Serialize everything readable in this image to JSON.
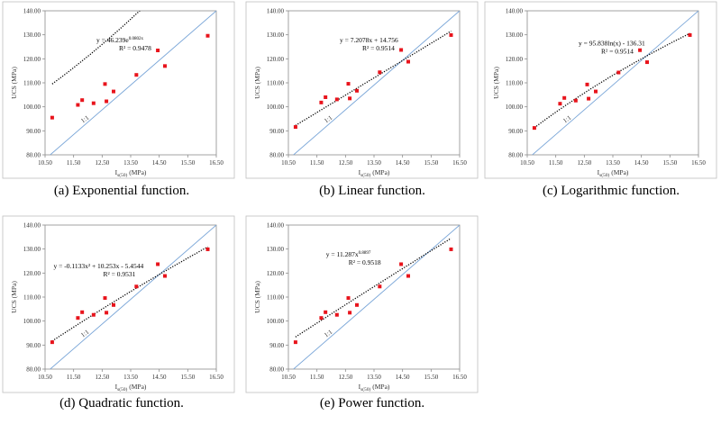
{
  "colors": {
    "points": "#e8141c",
    "trend": "#000000",
    "line_1_1": "#7aa6d8",
    "frame": "#bfbfbf"
  },
  "panels": [
    {
      "caption": "(a) Exponential function.",
      "equation": "y = 46.239e^{0.0802x}",
      "equation_display": "y = 46.239e",
      "equation_exp": "0.0802x",
      "r2": "R² = 0.9478",
      "ylabel": "UCS (MPa)",
      "xlabel_main": "I",
      "xlabel_sub": "s(50)",
      "xlabel_unit": " (MPa)",
      "line_label": "1:1"
    },
    {
      "caption": "(b) Linear function.",
      "equation": "y = 7.2078x + 14.756",
      "equation_display": "y = 7.2078x + 14.756",
      "equation_exp": "",
      "r2": "R² = 0.9514",
      "ylabel": "UCS (MPa)",
      "xlabel_main": "I",
      "xlabel_sub": "s(50)",
      "xlabel_unit": " (MPa)",
      "line_label": "1:1"
    },
    {
      "caption": "(c) Logarithmic function.",
      "equation": "y = 95.838ln(x) - 136.31",
      "equation_display": "y = 95.838ln(x) - 136.31",
      "equation_exp": "",
      "r2": "R² = 0.9514",
      "ylabel": "UCS (MPa)",
      "xlabel_main": "I",
      "xlabel_sub": "s(50)",
      "xlabel_unit": " (MPa)",
      "line_label": "1:1"
    },
    {
      "caption": "(d) Quadratic function.",
      "equation": "y = -0.1133x² + 10.253x - 5.4544",
      "equation_display": "y = -0.1133x² + 10.253x - 5.4544",
      "equation_exp": "",
      "r2": "R² = 0.9531",
      "ylabel": "UCS (MPa)",
      "xlabel_main": "I",
      "xlabel_sub": "s(50)",
      "xlabel_unit": " (MPa)",
      "line_label": "1:1"
    },
    {
      "caption": "(e) Power function.",
      "equation": "y = 11.287x^{0.8897}",
      "equation_display": "y = 11.287x",
      "equation_exp": "0.8897",
      "r2": "R² = 0.9518",
      "ylabel": "UCS (MPa)",
      "xlabel_main": "I",
      "xlabel_sub": "s(50)",
      "xlabel_unit": " (MPa)",
      "line_label": "1:1"
    }
  ],
  "chart_data": [
    {
      "type": "scatter",
      "x": [
        10.75,
        11.65,
        11.8,
        12.2,
        12.6,
        12.65,
        12.9,
        13.7,
        14.45,
        14.7,
        16.2
      ],
      "y": [
        95.5,
        100.8,
        102.8,
        101.5,
        109.5,
        102.3,
        106.4,
        113.3,
        123.5,
        117.0,
        129.6
      ],
      "trend": "exponential",
      "fit": {
        "a": 46.239,
        "b": 0.0802
      },
      "xlim": [
        10.5,
        16.5
      ],
      "ylim": [
        80,
        140
      ],
      "xticks": [
        "10.50",
        "11.50",
        "12.50",
        "13.50",
        "14.50",
        "15.50",
        "16.50"
      ],
      "yticks": [
        "80.00",
        "90.00",
        "100.00",
        "110.00",
        "120.00",
        "130.00",
        "140.00"
      ]
    },
    {
      "type": "scatter",
      "x": [
        10.75,
        11.65,
        11.8,
        12.2,
        12.6,
        12.65,
        12.9,
        13.7,
        14.45,
        14.7,
        16.2
      ],
      "y": [
        91.6,
        101.8,
        104.0,
        103.1,
        109.6,
        103.5,
        106.7,
        114.4,
        123.7,
        118.8,
        129.9
      ],
      "trend": "linear",
      "fit": {
        "a": 7.2078,
        "b": 14.756
      },
      "xlim": [
        10.5,
        16.5
      ],
      "ylim": [
        80,
        140
      ],
      "xticks": [
        "10.50",
        "11.50",
        "12.50",
        "13.50",
        "14.50",
        "15.50",
        "16.50"
      ],
      "yticks": [
        "80.00",
        "90.00",
        "100.00",
        "110.00",
        "120.00",
        "130.00",
        "140.00"
      ]
    },
    {
      "type": "scatter",
      "x": [
        10.75,
        11.65,
        11.8,
        12.2,
        12.6,
        12.65,
        12.9,
        13.7,
        14.45,
        14.7,
        16.2
      ],
      "y": [
        91.2,
        101.3,
        103.7,
        102.6,
        109.3,
        103.4,
        106.4,
        114.3,
        123.6,
        118.6,
        129.9
      ],
      "trend": "logarithmic",
      "fit": {
        "a": 95.838,
        "b": -136.31
      },
      "xlim": [
        10.5,
        16.5
      ],
      "ylim": [
        80,
        140
      ],
      "xticks": [
        "10.50",
        "11.50",
        "12.50",
        "13.50",
        "14.50",
        "15.50",
        "16.50"
      ],
      "yticks": [
        "80.00",
        "90.00",
        "100.00",
        "110.00",
        "120.00",
        "130.00",
        "140.00"
      ]
    },
    {
      "type": "scatter",
      "x": [
        10.75,
        11.65,
        11.8,
        12.2,
        12.6,
        12.65,
        12.9,
        13.7,
        14.45,
        14.7,
        16.2
      ],
      "y": [
        91.2,
        101.3,
        103.7,
        102.6,
        109.6,
        103.5,
        106.7,
        114.4,
        123.7,
        118.8,
        129.9
      ],
      "trend": "quadratic",
      "fit": {
        "a": -0.1133,
        "b": 10.253,
        "c": -5.4544
      },
      "xlim": [
        10.5,
        16.5
      ],
      "ylim": [
        80,
        140
      ],
      "xticks": [
        "10.50",
        "11.50",
        "12.50",
        "13.50",
        "14.50",
        "15.50",
        "16.50"
      ],
      "yticks": [
        "80.00",
        "90.00",
        "100.00",
        "110.00",
        "120.00",
        "130.00",
        "140.00"
      ]
    },
    {
      "type": "scatter",
      "x": [
        10.75,
        11.65,
        11.8,
        12.2,
        12.6,
        12.65,
        12.9,
        13.7,
        14.45,
        14.7,
        16.2
      ],
      "y": [
        91.2,
        101.3,
        103.7,
        102.6,
        109.6,
        103.5,
        106.7,
        114.4,
        123.7,
        118.8,
        129.9
      ],
      "trend": "power",
      "fit": {
        "a": 11.287,
        "b": 0.8897
      },
      "xlim": [
        10.5,
        16.5
      ],
      "ylim": [
        80,
        140
      ],
      "xticks": [
        "10.50",
        "11.50",
        "12.50",
        "13.50",
        "14.50",
        "15.50",
        "16.50"
      ],
      "yticks": [
        "80.00",
        "90.00",
        "100.00",
        "110.00",
        "120.00",
        "130.00",
        "140.00"
      ]
    }
  ]
}
